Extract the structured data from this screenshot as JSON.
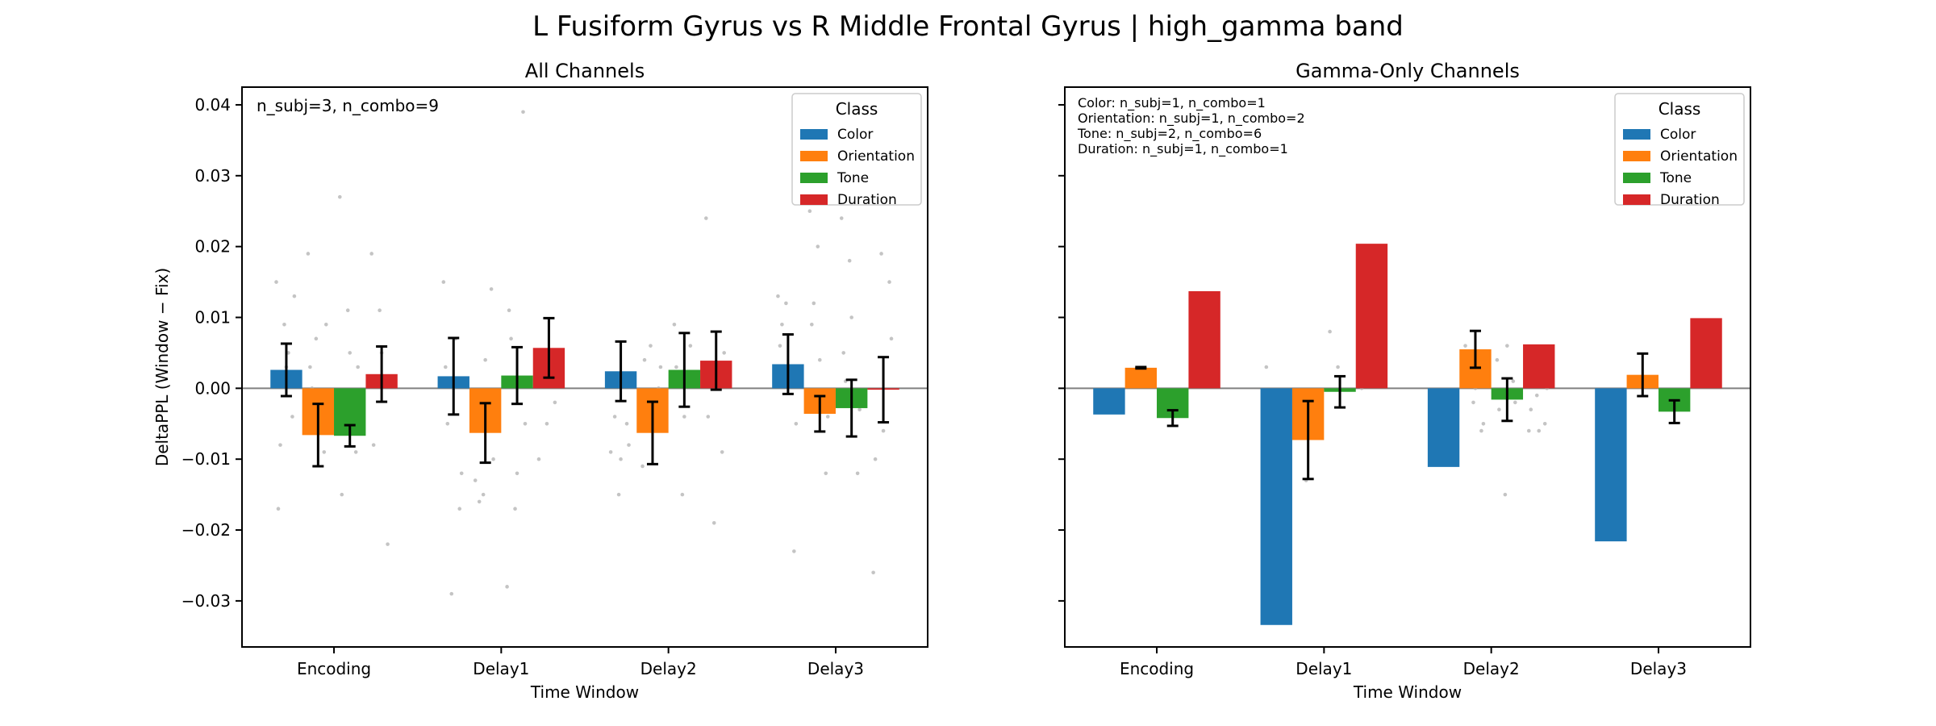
{
  "suptitle": "L Fusiform Gyrus vs R Middle Frontal Gyrus  |  high_gamma band",
  "colors": {
    "Color": "#1f77b4",
    "Orientation": "#ff7f0e",
    "Tone": "#2ca02c",
    "Duration": "#d62728",
    "zero_line": "#808080",
    "points": "#b0b0b0"
  },
  "chart_data": [
    {
      "type": "bar",
      "title": "All Channels",
      "xlabel": "Time Window",
      "ylabel": "DeltaPPL (Window − Fix)",
      "ylim": [
        -0.0365,
        0.0425
      ],
      "yticks": [
        -0.03,
        -0.02,
        -0.01,
        0.0,
        0.01,
        0.02,
        0.03,
        0.04
      ],
      "yticklabels": [
        "−0.03",
        "−0.02",
        "−0.01",
        "0.00",
        "0.01",
        "0.02",
        "0.03",
        "0.04"
      ],
      "show_yticklabels": true,
      "categories": [
        "Encoding",
        "Delay1",
        "Delay2",
        "Delay3"
      ],
      "legend": {
        "title": "Class",
        "placement": "top-right"
      },
      "annotation": [
        "n_subj=3, n_combo=9"
      ],
      "series": [
        {
          "name": "Color",
          "values": [
            0.0026,
            0.0017,
            0.0024,
            0.0034
          ],
          "err": [
            0.0037,
            0.0054,
            0.0042,
            0.0042
          ]
        },
        {
          "name": "Orientation",
          "values": [
            -0.0066,
            -0.0063,
            -0.0063,
            -0.0036
          ],
          "err": [
            0.0044,
            0.0042,
            0.0044,
            0.0025
          ]
        },
        {
          "name": "Tone",
          "values": [
            -0.0067,
            0.0018,
            0.0026,
            -0.0028
          ],
          "err": [
            0.0015,
            0.004,
            0.0052,
            0.004
          ]
        },
        {
          "name": "Duration",
          "values": [
            0.002,
            0.0057,
            0.0039,
            -0.0002
          ],
          "err": [
            0.0039,
            0.0042,
            0.0041,
            0.0046
          ]
        }
      ],
      "points": [
        [
          [
            0.015,
            0.009,
            -0.004,
            -0.017,
            0.003,
            0.013,
            -0.008,
            0.005
          ],
          [
            0.015,
            -0.029,
            -0.017,
            0.003,
            0.0,
            -0.012,
            -0.005,
            0.007
          ],
          [
            -0.009,
            -0.015,
            -0.005,
            0.001,
            -0.01,
            -0.008,
            -0.004
          ],
          [
            0.013,
            0.012,
            -0.023,
            0.006,
            0.003,
            -0.005,
            0.009
          ]
        ],
        [
          [
            0.019,
            0.007,
            -0.009,
            0.003,
            -0.004,
            0.009,
            0.0
          ],
          [
            -0.013,
            -0.015,
            0.014,
            -0.005,
            0.004,
            -0.01,
            -0.016
          ],
          [
            -0.011,
            0.006,
            0.0,
            0.004,
            -0.002,
            0.003
          ],
          [
            0.025,
            0.02,
            -0.012,
            0.009,
            0.004,
            -0.004,
            0.012
          ]
        ],
        [
          [
            0.027,
            0.011,
            -0.009,
            -0.015,
            0.005,
            0.003
          ],
          [
            -0.028,
            -0.017,
            0.039,
            0.011,
            -0.012,
            -0.005,
            0.007
          ],
          [
            0.009,
            -0.015,
            0.006,
            0.003,
            -0.004,
            0.002
          ],
          [
            0.024,
            0.018,
            -0.012,
            0.005,
            0.01,
            -0.003,
            0.001
          ]
        ],
        [
          [
            0.019,
            0.011,
            -0.022,
            -0.008,
            0.005,
            0.001
          ],
          [
            -0.01,
            -0.005,
            -0.002,
            0.003
          ],
          [
            0.024,
            -0.019,
            -0.009,
            -0.004,
            0.002,
            0.005
          ],
          [
            -0.026,
            0.019,
            0.015,
            -0.01,
            -0.006,
            0.007
          ]
        ]
      ]
    },
    {
      "type": "bar",
      "title": "Gamma-Only Channels",
      "xlabel": "Time Window",
      "ylabel": "",
      "ylim": [
        -0.0365,
        0.0425
      ],
      "yticks": [
        -0.03,
        -0.02,
        -0.01,
        0.0,
        0.01,
        0.02,
        0.03,
        0.04
      ],
      "yticklabels": [
        "",
        "",
        "",
        "",
        "",
        "",
        "",
        ""
      ],
      "show_yticklabels": false,
      "categories": [
        "Encoding",
        "Delay1",
        "Delay2",
        "Delay3"
      ],
      "legend": {
        "title": "Class",
        "placement": "top-right"
      },
      "annotation": [
        "Color: n_subj=1, n_combo=1",
        "Orientation: n_subj=1, n_combo=2",
        "Tone: n_subj=2, n_combo=6",
        "Duration: n_subj=1, n_combo=1"
      ],
      "series": [
        {
          "name": "Color",
          "values": [
            -0.0037,
            -0.0334,
            -0.0111,
            -0.0216
          ],
          "err": [
            null,
            null,
            null,
            null
          ]
        },
        {
          "name": "Orientation",
          "values": [
            0.0029,
            -0.0073,
            0.0055,
            0.0019
          ],
          "err": [
            0.0001,
            0.0055,
            0.0026,
            0.003
          ]
        },
        {
          "name": "Tone",
          "values": [
            -0.0042,
            -0.0005,
            -0.0016,
            -0.0033
          ],
          "err": [
            0.0011,
            0.0022,
            0.003,
            0.0016
          ]
        },
        {
          "name": "Duration",
          "values": [
            0.0137,
            0.0204,
            0.0062,
            0.0099
          ],
          "err": [
            null,
            null,
            null,
            null
          ]
        }
      ],
      "points": [
        [
          [],
          [
            0.003
          ],
          [
            -0.01,
            -0.003,
            -0.004,
            -0.005
          ],
          []
        ],
        [
          [],
          [
            -0.001,
            -0.013
          ],
          [
            0.006,
            -0.002,
            -0.006,
            0.002,
            0.0,
            -0.005
          ],
          []
        ],
        [
          [],
          [
            0.008,
            0.003
          ],
          [
            0.004,
            -0.015,
            0.001,
            -0.003,
            0.006,
            -0.002
          ],
          []
        ],
        [
          [],
          [
            0.0,
            0.005
          ],
          [
            -0.006,
            -0.001,
            -0.005,
            -0.003,
            -0.006,
            0.0
          ],
          []
        ]
      ]
    }
  ]
}
